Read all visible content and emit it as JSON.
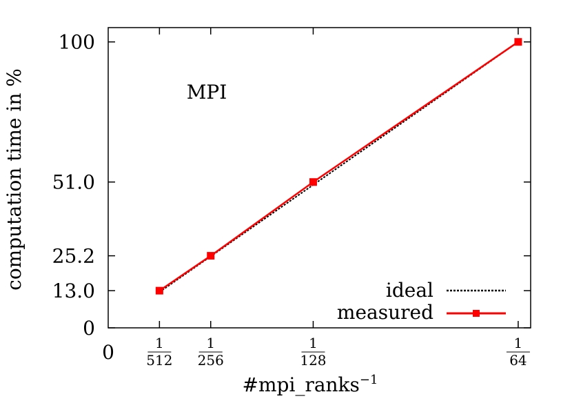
{
  "chart_data": {
    "type": "line",
    "title": "",
    "annotation": "MPI",
    "xlabel": "#mpi_ranks",
    "xlabel_superscript": "−1",
    "ylabel": "computation time in %",
    "x_origin_label": "0",
    "x_ticks": [
      {
        "num": "1",
        "den": "512",
        "value": 0.001953125
      },
      {
        "num": "1",
        "den": "256",
        "value": 0.00390625
      },
      {
        "num": "1",
        "den": "128",
        "value": 0.0078125
      },
      {
        "num": "1",
        "den": "64",
        "value": 0.015625
      }
    ],
    "y_ticks": [
      {
        "label": "0",
        "value": 0
      },
      {
        "label": "13.0",
        "value": 13.0
      },
      {
        "label": "25.2",
        "value": 25.2
      },
      {
        "label": "51.0",
        "value": 51.0
      },
      {
        "label": "100",
        "value": 100
      }
    ],
    "xlim": [
      0,
      0.0161
    ],
    "ylim": [
      0,
      105
    ],
    "grid": false,
    "legend_position": "bottom-right",
    "series": [
      {
        "name": "ideal",
        "style": "dotted",
        "color": "#000000",
        "x": [
          0.001953125,
          0.00390625,
          0.0078125,
          0.015625
        ],
        "y": [
          12.5,
          25.0,
          50.0,
          100.0
        ]
      },
      {
        "name": "measured",
        "style": "solid-square-markers",
        "color": "#ff0000",
        "x": [
          0.001953125,
          0.00390625,
          0.0078125,
          0.015625
        ],
        "y": [
          13.0,
          25.2,
          51.0,
          100.0
        ]
      }
    ]
  }
}
